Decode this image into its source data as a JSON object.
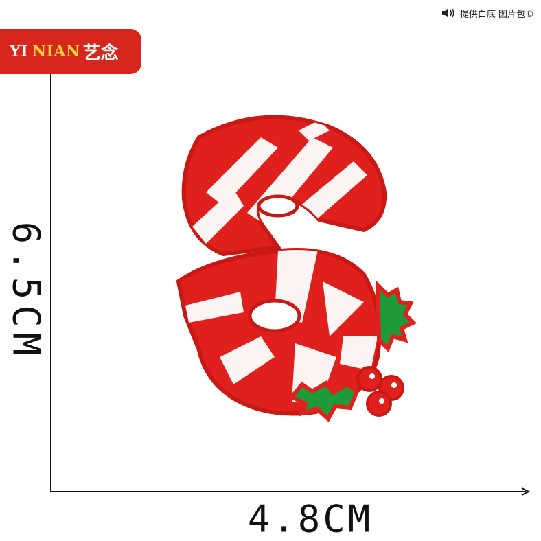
{
  "notice": {
    "icon": "speaker-icon",
    "text": "提供白底 图片包©"
  },
  "brand": {
    "latin_1": "YI",
    "latin_2": "NIAN",
    "chinese": "艺念",
    "background": "#d7261e",
    "accent": "#ffd23a"
  },
  "dimensions": {
    "height_label": "6.5CM",
    "width_label": "4.8CM"
  },
  "product": {
    "subject": "candy-cane-s-embroidered-patch",
    "colors": {
      "red": "#e0201c",
      "white": "#fbf4f2",
      "green": "#1f9a3a"
    }
  }
}
